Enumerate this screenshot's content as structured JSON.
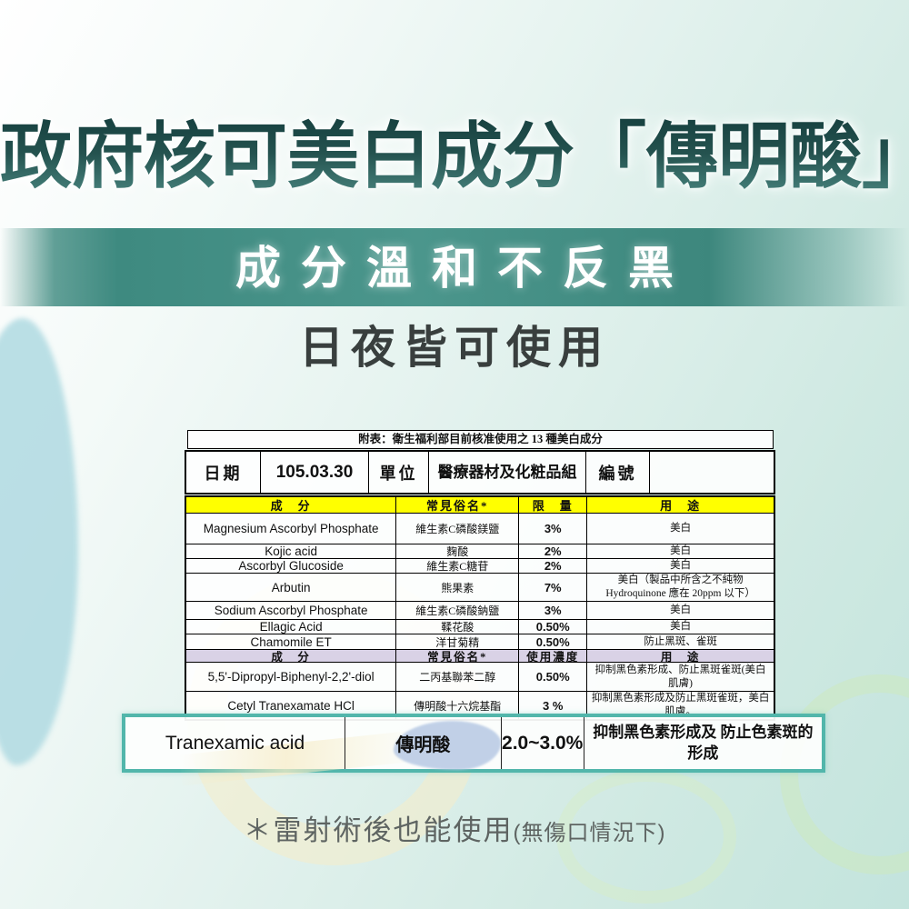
{
  "page": {
    "title": "政府核可美白成分「傳明酸」",
    "banner": "成分溫和不反黑",
    "subtitle": "日夜皆可使用",
    "note_main": "＊雷射術後也能使用",
    "note_sub": "(無傷口情況下)"
  },
  "table": {
    "caption": "附表：衛生福利部目前核准使用之 13 種美白成分",
    "info": {
      "date_label": "日期",
      "date_value": "105.03.30",
      "unit_label": "單位",
      "unit_value": "醫療器材及化粧品組",
      "number_label": "編號",
      "number_value": ""
    },
    "rows": [
      {
        "kind": "header",
        "cells": [
          "成　分",
          "常見俗名*",
          "限　量",
          "用　途"
        ]
      },
      {
        "kind": "data",
        "cells": [
          "Magnesium Ascorbyl Phosphate",
          "維生素C磷酸鎂鹽",
          "3%",
          "美白"
        ]
      },
      {
        "kind": "data",
        "cells": [
          "Kojic acid",
          "麴酸",
          "2%",
          "美白"
        ]
      },
      {
        "kind": "data",
        "cells": [
          "Ascorbyl Glucoside",
          "維生素C糖苷",
          "2%",
          "美白"
        ]
      },
      {
        "kind": "data",
        "cells": [
          "Arbutin",
          "熊果素",
          "7%",
          "美白（製品中所含之不純物 Hydroquinone 應在 20ppm 以下）"
        ]
      },
      {
        "kind": "data",
        "cells": [
          "Sodium Ascorbyl Phosphate",
          "維生素C磷酸鈉鹽",
          "3%",
          "美白"
        ]
      },
      {
        "kind": "data",
        "cells": [
          "Ellagic Acid",
          "鞣花酸",
          "0.50%",
          "美白"
        ]
      },
      {
        "kind": "data",
        "cells": [
          "Chamomile ET",
          "洋甘菊精",
          "0.50%",
          "防止黑斑、雀斑"
        ]
      },
      {
        "kind": "header2",
        "cells": [
          "成　分",
          "常見俗名*",
          "使用濃度",
          "用　途"
        ]
      },
      {
        "kind": "data",
        "cells": [
          "5,5'-Dipropyl-Biphenyl-2,2'-diol",
          "二丙基聯苯二醇",
          "0.50%",
          "抑制黑色素形成、防止黑斑雀斑(美白肌膚)"
        ]
      },
      {
        "kind": "data",
        "cells": [
          "Cetyl Tranexamate HCl",
          "傳明酸十六烷基酯",
          "3 %",
          "抑制黑色素形成及防止黑斑雀斑，美白肌膚。"
        ]
      }
    ],
    "highlight_row": {
      "name": "Tranexamic acid",
      "common_name": "傳明酸",
      "limit": "2.0~3.0%",
      "use": "抑制黑色素形成及 防止色素斑的形成"
    }
  },
  "colors": {
    "title_teal_dark": "#16403f",
    "title_teal_light": "#4f8d87",
    "banner_teal": "#3e8a80",
    "header_yellow": "#ffff00",
    "header_lavender": "#d9d2e6",
    "highlight_border_teal": "#52b6ab",
    "background_mint": "#c3e4dd",
    "blob_blue": "#b4dce3",
    "note_gray": "#5e6462"
  }
}
